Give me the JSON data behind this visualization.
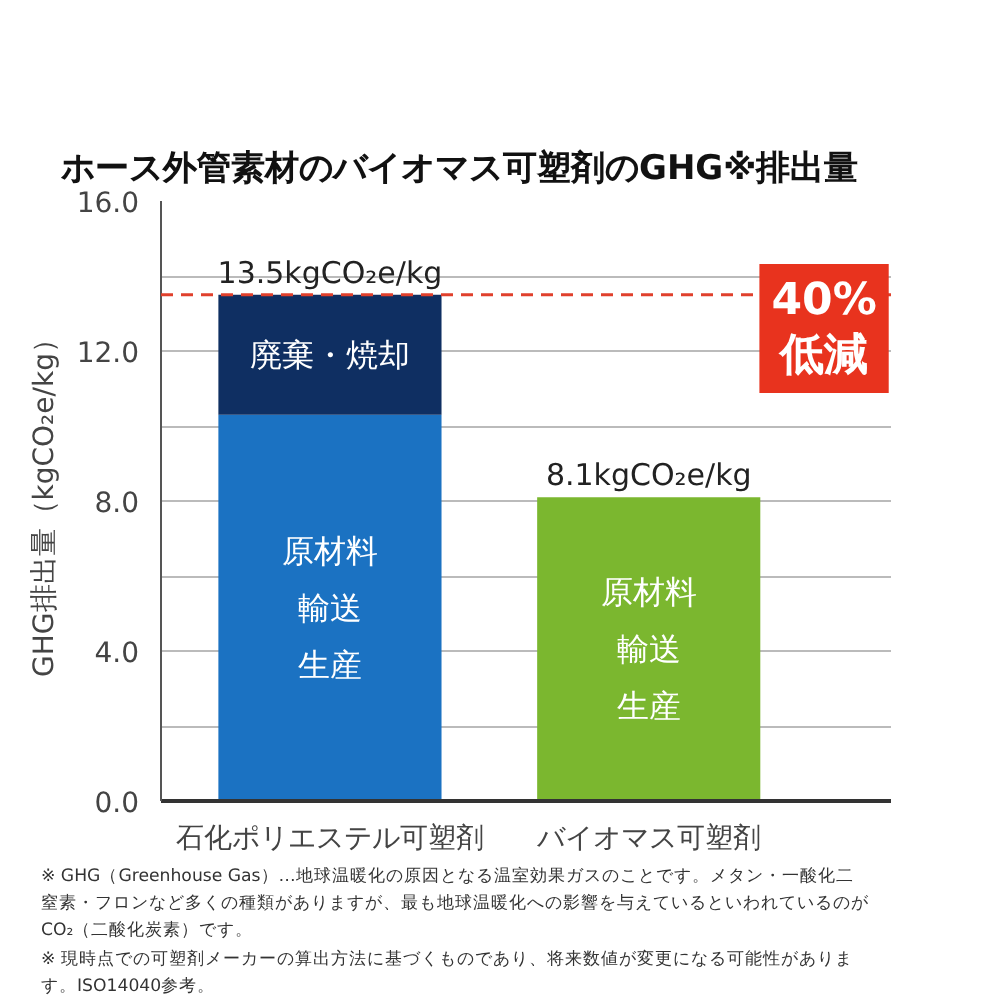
{
  "chart_data": {
    "type": "bar",
    "title": "ホース外管素材のバイオマス可塑剤のGHG※排出量",
    "ylabel": "GHG排出量（kgCO₂e/kg）",
    "categories": [
      "石化ポリエステル可塑剤",
      "バイオマス可塑剤"
    ],
    "stacked": true,
    "series": [
      {
        "name": "原材料輸送生産",
        "colors": [
          "#1b72c2",
          "#7bb72f"
        ],
        "values": [
          10.3,
          8.1
        ]
      },
      {
        "name": "廃棄・焼却",
        "color": "#0f2f62",
        "values": [
          3.2,
          null
        ]
      }
    ],
    "totals": [
      "13.5kgCO₂e/kg",
      "8.1kgCO₂e/kg"
    ],
    "ylim": [
      0,
      16
    ],
    "yticks": [
      {
        "value": 0,
        "label": "0.0"
      },
      {
        "value": 2,
        "label": null
      },
      {
        "value": 4,
        "label": "4.0"
      },
      {
        "value": 6,
        "label": null
      },
      {
        "value": 8,
        "label": "8.0"
      },
      {
        "value": 10,
        "label": null
      },
      {
        "value": 12,
        "label": "12.0"
      },
      {
        "value": 14,
        "label": null
      },
      {
        "value": 16,
        "label": "16.0"
      }
    ],
    "grid": "y",
    "ref_lines": [
      {
        "axis": "y",
        "value": 13.5,
        "color": "#e0402c",
        "line_style": "dashed"
      }
    ],
    "annotations": [
      "40%\n低減",
      "※ GHG（Greenhouse Gas）…地球温暖化の原因となる温室効果ガスのことです。メタン・一酸化二窒素・フロンなど多くの種類がありますが、最も地球温暖化への影響を与えているといわれているのがCO₂（二酸化炭素）です。",
      "※ 現時点での可塑剤メーカーの算出方法に基づくものであり、将来数値が変更になる可能性があります。ISO14040参考。"
    ]
  }
}
